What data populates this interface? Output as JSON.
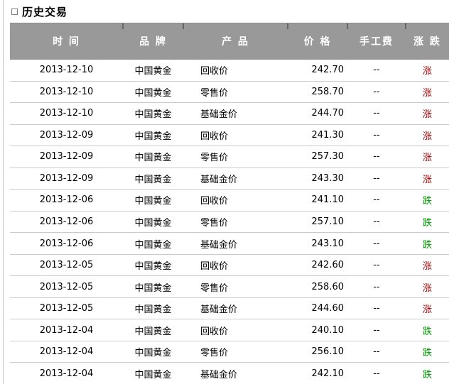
{
  "section": {
    "title": "历史交易"
  },
  "table": {
    "headers": [
      {
        "label": "时 间"
      },
      {
        "label": "品 牌"
      },
      {
        "label": "产 品"
      },
      {
        "label": "价 格"
      },
      {
        "label": "手工费"
      },
      {
        "label": "涨 跌"
      }
    ],
    "header_bg": "#999999",
    "header_text_color": "#ffffff",
    "trend_colors": {
      "up": "#990000",
      "down": "#009900"
    },
    "rows": [
      {
        "date": "2013-12-10",
        "brand": "中国黄金",
        "product": "回收价",
        "price": "242.70",
        "fee": "--",
        "trend": "涨",
        "direction": "up"
      },
      {
        "date": "2013-12-10",
        "brand": "中国黄金",
        "product": "零售价",
        "price": "258.70",
        "fee": "--",
        "trend": "涨",
        "direction": "up"
      },
      {
        "date": "2013-12-10",
        "brand": "中国黄金",
        "product": "基础金价",
        "price": "244.70",
        "fee": "--",
        "trend": "涨",
        "direction": "up"
      },
      {
        "date": "2013-12-09",
        "brand": "中国黄金",
        "product": "回收价",
        "price": "241.30",
        "fee": "--",
        "trend": "涨",
        "direction": "up"
      },
      {
        "date": "2013-12-09",
        "brand": "中国黄金",
        "product": "零售价",
        "price": "257.30",
        "fee": "--",
        "trend": "涨",
        "direction": "up"
      },
      {
        "date": "2013-12-09",
        "brand": "中国黄金",
        "product": "基础金价",
        "price": "243.30",
        "fee": "--",
        "trend": "涨",
        "direction": "up"
      },
      {
        "date": "2013-12-06",
        "brand": "中国黄金",
        "product": "回收价",
        "price": "241.10",
        "fee": "--",
        "trend": "跌",
        "direction": "down"
      },
      {
        "date": "2013-12-06",
        "brand": "中国黄金",
        "product": "零售价",
        "price": "257.10",
        "fee": "--",
        "trend": "跌",
        "direction": "down"
      },
      {
        "date": "2013-12-06",
        "brand": "中国黄金",
        "product": "基础金价",
        "price": "243.10",
        "fee": "--",
        "trend": "跌",
        "direction": "down"
      },
      {
        "date": "2013-12-05",
        "brand": "中国黄金",
        "product": "回收价",
        "price": "242.60",
        "fee": "--",
        "trend": "涨",
        "direction": "up"
      },
      {
        "date": "2013-12-05",
        "brand": "中国黄金",
        "product": "零售价",
        "price": "258.60",
        "fee": "--",
        "trend": "涨",
        "direction": "up"
      },
      {
        "date": "2013-12-05",
        "brand": "中国黄金",
        "product": "基础金价",
        "price": "244.60",
        "fee": "--",
        "trend": "涨",
        "direction": "up"
      },
      {
        "date": "2013-12-04",
        "brand": "中国黄金",
        "product": "回收价",
        "price": "240.10",
        "fee": "--",
        "trend": "跌",
        "direction": "down"
      },
      {
        "date": "2013-12-04",
        "brand": "中国黄金",
        "product": "零售价",
        "price": "256.10",
        "fee": "--",
        "trend": "跌",
        "direction": "down"
      },
      {
        "date": "2013-12-04",
        "brand": "中国黄金",
        "product": "基础金价",
        "price": "242.10",
        "fee": "--",
        "trend": "跌",
        "direction": "down"
      }
    ]
  }
}
